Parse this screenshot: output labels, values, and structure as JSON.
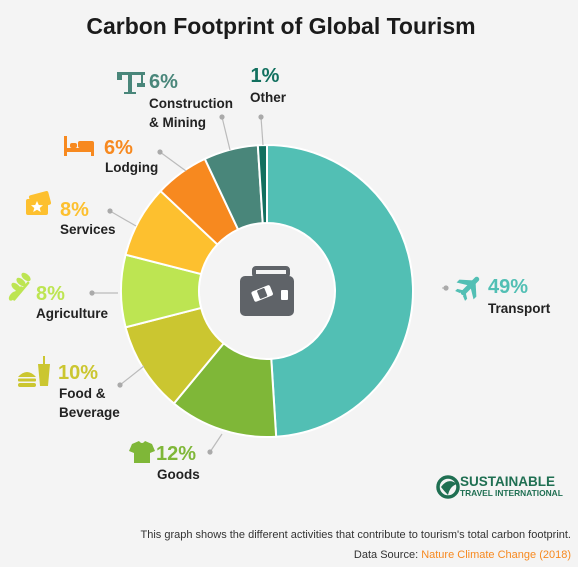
{
  "chart_data": {
    "type": "pie",
    "title": "Carbon Footprint of Global Tourism",
    "categories": [
      "Transport",
      "Goods",
      "Food & Beverage",
      "Agriculture",
      "Services",
      "Lodging",
      "Construction & Mining",
      "Other"
    ],
    "values": [
      49,
      12,
      10,
      8,
      8,
      6,
      6,
      1
    ],
    "value_labels": [
      "49%",
      "12%",
      "10%",
      "8%",
      "8%",
      "6%",
      "6%",
      "1%"
    ],
    "label_lines": [
      [
        "Transport"
      ],
      [
        "Goods"
      ],
      [
        "Food &",
        "Beverage"
      ],
      [
        "Agriculture"
      ],
      [
        "Services"
      ],
      [
        "Lodging"
      ],
      [
        "Construction",
        "& Mining"
      ],
      [
        "Other"
      ]
    ],
    "colors": [
      "#52bfb4",
      "#7fb738",
      "#cbc630",
      "#bde552",
      "#fdc02f",
      "#f7891f",
      "#49867a",
      "#12705f"
    ],
    "icons": [
      "airplane-icon",
      "tshirt-icon",
      "burger-drink-icon",
      "wheat-icon",
      "ticket-icon",
      "bed-icon",
      "crane-icon",
      ""
    ],
    "center_icon": "suitcase-icon",
    "donut": true,
    "legend": "none"
  },
  "caption": "This graph shows the different activities that contribute to tourism's total carbon footprint.",
  "source": {
    "label": "Data Source: ",
    "link_text": "Nature Climate Change (2018)",
    "link_color": "#f7891f"
  },
  "brand": {
    "line1": "SUSTAINABLE",
    "line2": "TRAVEL INTERNATIONAL",
    "color": "#1f6f52"
  }
}
